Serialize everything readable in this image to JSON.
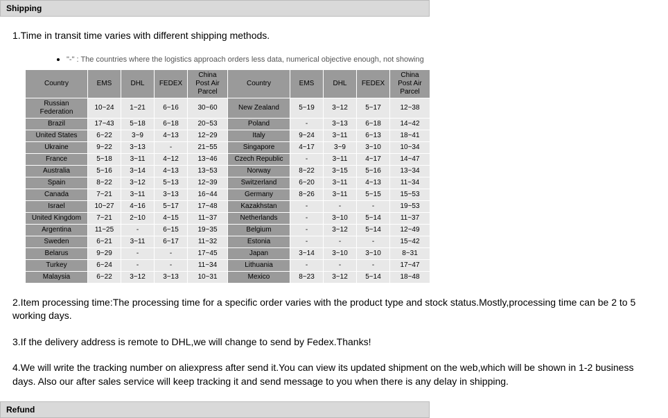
{
  "sections": {
    "shipping_title": "Shipping",
    "refund_title": "Refund"
  },
  "paragraphs": {
    "p1": "1.Time in transit time varies with different shipping methods.",
    "note": "\"-\" : The countries where the logistics approach orders less data, numerical objective enough, not showing",
    "p2": "2.Item processing time:The processing time for a specific order varies with the product type and stock status.Mostly,processing time can be 2 to 5 working days.",
    "p3": "3.If the delivery address is remote to DHL,we will change to send by Fedex.Thanks!",
    "p4": "4.We will write the tracking number on aliexpress after send it.You can view its updated shipment on the web,which will be shown in 1-2 business days. Also our after sales service will keep tracking it and send message to you when there is any delay in shipping."
  },
  "table": {
    "headers": [
      "Country",
      "EMS",
      "DHL",
      "FEDEX",
      "China Post Air Parcel",
      "Country",
      "EMS",
      "DHL",
      "FEDEX",
      "China Post Air Parcel"
    ],
    "rows": [
      [
        "Russian Federation",
        "10~24",
        "1~21",
        "6~16",
        "30~60",
        "New Zealand",
        "5~19",
        "3~12",
        "5~17",
        "12~38"
      ],
      [
        "Brazil",
        "17~43",
        "5~18",
        "6~18",
        "20~53",
        "Poland",
        "-",
        "3~13",
        "6~18",
        "14~42"
      ],
      [
        "United States",
        "6~22",
        "3~9",
        "4~13",
        "12~29",
        "Italy",
        "9~24",
        "3~11",
        "6~13",
        "18~41"
      ],
      [
        "Ukraine",
        "9~22",
        "3~13",
        "-",
        "21~55",
        "Singapore",
        "4~17",
        "3~9",
        "3~10",
        "10~34"
      ],
      [
        "France",
        "5~18",
        "3~11",
        "4~12",
        "13~46",
        "Czech Republic",
        "-",
        "3~11",
        "4~17",
        "14~47"
      ],
      [
        "Australia",
        "5~16",
        "3~14",
        "4~13",
        "13~53",
        "Norway",
        "8~22",
        "3~15",
        "5~16",
        "13~34"
      ],
      [
        "Spain",
        "8~22",
        "3~12",
        "5~13",
        "12~39",
        "Switzerland",
        "6~20",
        "3~11",
        "4~13",
        "11~34"
      ],
      [
        "Canada",
        "7~21",
        "3~11",
        "3~13",
        "16~44",
        "Germany",
        "8~26",
        "3~11",
        "5~15",
        "15~53"
      ],
      [
        "Israel",
        "10~27",
        "4~16",
        "5~17",
        "17~48",
        "Kazakhstan",
        "-",
        "-",
        "-",
        "19~53"
      ],
      [
        "United Kingdom",
        "7~21",
        "2~10",
        "4~15",
        "11~37",
        "Netherlands",
        "-",
        "3~10",
        "5~14",
        "11~37"
      ],
      [
        "Argentina",
        "11~25",
        "-",
        "6~15",
        "19~35",
        "Belgium",
        "-",
        "3~12",
        "5~14",
        "12~49"
      ],
      [
        "Sweden",
        "6~21",
        "3~11",
        "6~17",
        "11~32",
        "Estonia",
        "-",
        "-",
        "-",
        "15~42"
      ],
      [
        "Belarus",
        "9~29",
        "-",
        "-",
        "17~45",
        "Japan",
        "3~14",
        "3~10",
        "3~10",
        "8~31"
      ],
      [
        "Turkey",
        "6~24",
        "-",
        "-",
        "11~34",
        "Lithuania",
        "-",
        "-",
        "-",
        "17~47"
      ],
      [
        "Malaysia",
        "6~22",
        "3~12",
        "3~13",
        "10~31",
        "Mexico",
        "8~23",
        "3~12",
        "5~14",
        "18~48"
      ]
    ]
  },
  "style": {
    "header_bg": "#d9d9d9",
    "th_bg": "#9a9a9a",
    "td_bg": "#e8e8e8",
    "border_color": "#ffffff",
    "page_bg": "#ffffff",
    "text_color": "#000000",
    "note_color": "#555555",
    "para_fontsize": 14,
    "table_fontsize": 10
  }
}
